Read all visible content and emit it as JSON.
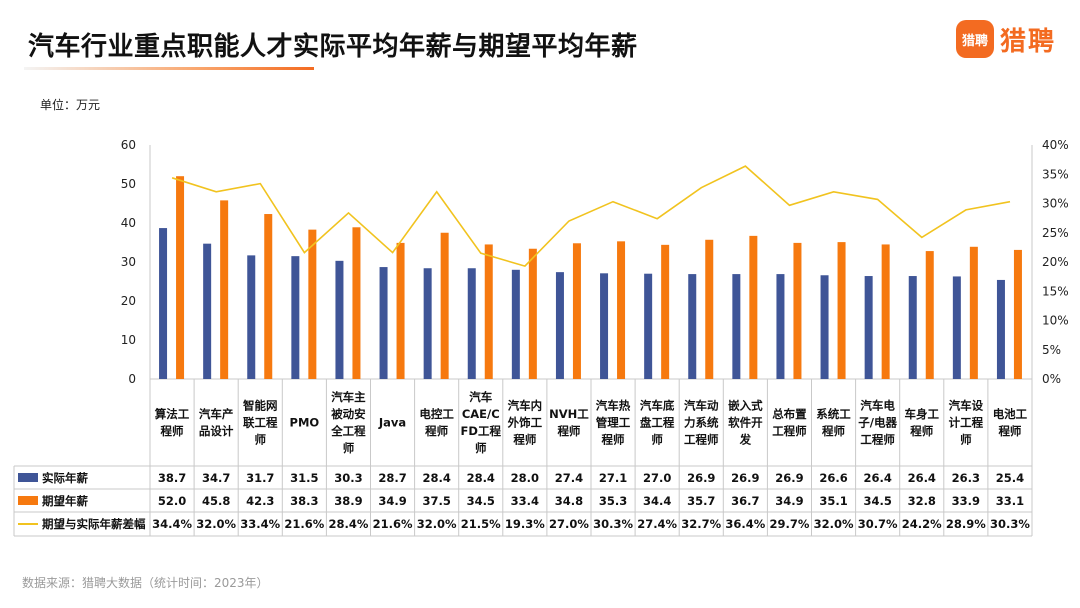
{
  "header": {
    "title": "汽车行业重点职能人才实际平均年薪与期望平均年薪",
    "logo_badge": "猎聘",
    "logo_text": "猎聘"
  },
  "unit_label": "单位：万元",
  "source_label": "数据来源：猎聘大数据（统计时间：2023年）",
  "colors": {
    "actual": "#3f5597",
    "expected": "#f6790f",
    "gap": "#f1c31f",
    "accent": "#f36b21"
  },
  "chart_data": {
    "type": "bar",
    "title": "汽车行业重点职能人才实际平均年薪与期望平均年薪",
    "ylabel": "单位：万元",
    "ylim": [
      0,
      60
    ],
    "yticks": [
      "0",
      "10",
      "20",
      "30",
      "40",
      "50",
      "60"
    ],
    "y2lim": [
      0,
      40
    ],
    "y2ticks": [
      "0%",
      "5%",
      "10%",
      "15%",
      "20%",
      "25%",
      "30%",
      "35%",
      "40%"
    ],
    "grid": false,
    "legend": "table-left",
    "categories": [
      [
        "算法工",
        "程师"
      ],
      [
        "汽车产",
        "品设计"
      ],
      [
        "智能网",
        "联工程",
        "师"
      ],
      [
        "PMO"
      ],
      [
        "汽车主",
        "被动安",
        "全工程",
        "师"
      ],
      [
        "Java"
      ],
      [
        "电控工",
        "程师"
      ],
      [
        "汽车",
        "CAE/C",
        "FD工程",
        "师"
      ],
      [
        "汽车内",
        "外饰工",
        "程师"
      ],
      [
        "NVH工",
        "程师"
      ],
      [
        "汽车热",
        "管理工",
        "程师"
      ],
      [
        "汽车底",
        "盘工程",
        "师"
      ],
      [
        "汽车动",
        "力系统",
        "工程师"
      ],
      [
        "嵌入式",
        "软件开",
        "发"
      ],
      [
        "总布置",
        "工程师"
      ],
      [
        "系统工",
        "程师"
      ],
      [
        "汽车电",
        "子/电器",
        "工程师"
      ],
      [
        "车身工",
        "程师"
      ],
      [
        "汽车设",
        "计工程",
        "师"
      ],
      [
        "电池工",
        "程师"
      ]
    ],
    "series": [
      {
        "name": "实际年薪",
        "type": "bar",
        "axis": "left",
        "values": [
          38.7,
          34.7,
          31.7,
          31.5,
          30.3,
          28.7,
          28.4,
          28.4,
          28.0,
          27.4,
          27.1,
          27.0,
          26.9,
          26.9,
          26.9,
          26.6,
          26.4,
          26.4,
          26.3,
          25.4
        ],
        "labels": [
          "38.7",
          "34.7",
          "31.7",
          "31.5",
          "30.3",
          "28.7",
          "28.4",
          "28.4",
          "28.0",
          "27.4",
          "27.1",
          "27.0",
          "26.9",
          "26.9",
          "26.9",
          "26.6",
          "26.4",
          "26.4",
          "26.3",
          "25.4"
        ]
      },
      {
        "name": "期望年薪",
        "type": "bar",
        "axis": "left",
        "values": [
          52.0,
          45.8,
          42.3,
          38.3,
          38.9,
          34.9,
          37.5,
          34.5,
          33.4,
          34.8,
          35.3,
          34.4,
          35.7,
          36.7,
          34.9,
          35.1,
          34.5,
          32.8,
          33.9,
          33.1
        ],
        "labels": [
          "52.0",
          "45.8",
          "42.3",
          "38.3",
          "38.9",
          "34.9",
          "37.5",
          "34.5",
          "33.4",
          "34.8",
          "35.3",
          "34.4",
          "35.7",
          "36.7",
          "34.9",
          "35.1",
          "34.5",
          "32.8",
          "33.9",
          "33.1"
        ]
      },
      {
        "name": "期望与实际年薪差幅",
        "type": "line",
        "axis": "right",
        "values": [
          34.4,
          32.0,
          33.4,
          21.6,
          28.4,
          21.6,
          32.0,
          21.5,
          19.3,
          27.0,
          30.3,
          27.4,
          32.7,
          36.4,
          29.7,
          32.0,
          30.7,
          24.2,
          28.9,
          30.3
        ],
        "labels": [
          "34.4%",
          "32.0%",
          "33.4%",
          "21.6%",
          "28.4%",
          "21.6%",
          "32.0%",
          "21.5%",
          "19.3%",
          "27.0%",
          "30.3%",
          "27.4%",
          "32.7%",
          "36.4%",
          "29.7%",
          "32.0%",
          "30.7%",
          "24.2%",
          "28.9%",
          "30.3%"
        ]
      }
    ]
  }
}
